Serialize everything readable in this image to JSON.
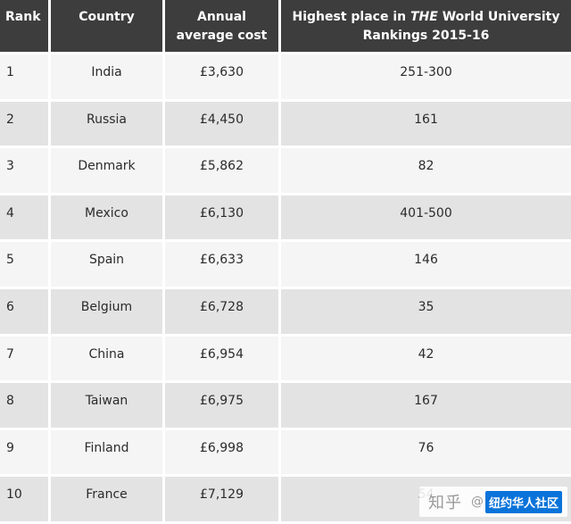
{
  "table": {
    "headers": {
      "rank": "Rank",
      "country": "Country",
      "cost_line1": "Annual",
      "cost_line2": "average cost",
      "place_line1_pre": "Highest place in ",
      "place_line1_em": "THE",
      "place_line1_post": " World University",
      "place_line2": "Rankings 2015-16"
    },
    "rows": [
      {
        "rank": "1",
        "country": "India",
        "cost": "£3,630",
        "place": "251-300"
      },
      {
        "rank": "2",
        "country": "Russia",
        "cost": "£4,450",
        "place": "161"
      },
      {
        "rank": "3",
        "country": "Denmark",
        "cost": "£5,862",
        "place": "82"
      },
      {
        "rank": "4",
        "country": "Mexico",
        "cost": "£6,130",
        "place": "401-500"
      },
      {
        "rank": "5",
        "country": "Spain",
        "cost": "£6,633",
        "place": "146"
      },
      {
        "rank": "6",
        "country": "Belgium",
        "cost": "£6,728",
        "place": "35"
      },
      {
        "rank": "7",
        "country": "China",
        "cost": "£6,954",
        "place": "42"
      },
      {
        "rank": "8",
        "country": "Taiwan",
        "cost": "£6,975",
        "place": "167"
      },
      {
        "rank": "9",
        "country": "Finland",
        "cost": "£6,998",
        "place": "76"
      },
      {
        "rank": "10",
        "country": "France",
        "cost": "£7,129",
        "place": "54"
      }
    ]
  },
  "watermark": {
    "site": "知乎",
    "at": "@",
    "account": "纽约华人社区",
    "tag_color": "#0a73d9"
  },
  "colors": {
    "header_bg": "#3d3d3d",
    "row_light": "#f5f5f5",
    "row_dark": "#e3e3e3"
  }
}
